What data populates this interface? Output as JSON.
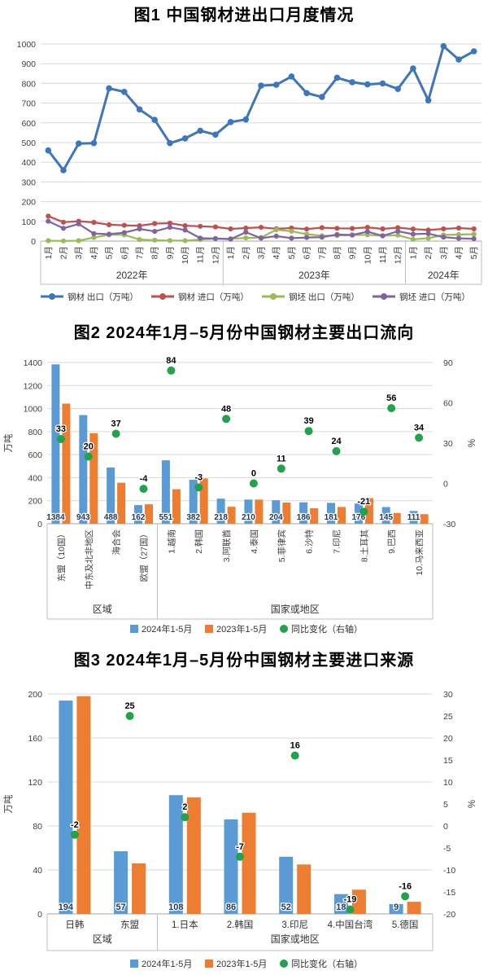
{
  "colors": {
    "bar_2024": "#5B9BD5",
    "bar_2023": "#ED7D31",
    "yoy_dot": "#21A24B",
    "grid": "#D9D9D9",
    "axis_line": "#A6A6A6",
    "separator": "#BFBFBF",
    "tick_text": "#404040",
    "bar_value_label": "#1F3864",
    "yoy_value_label": "#000000"
  },
  "chart_data": [
    {
      "id": "fig1",
      "type": "line",
      "title": "图1 中国钢材进出口月度情况",
      "categories": [
        "1月",
        "2月",
        "3月",
        "4月",
        "5月",
        "6月",
        "7月",
        "8月",
        "9月",
        "10月",
        "11月",
        "12月",
        "1月",
        "2月",
        "3月",
        "4月",
        "5月",
        "6月",
        "7月",
        "8月",
        "9月",
        "10月",
        "11月",
        "12月",
        "1月",
        "2月",
        "3月",
        "4月",
        "5月"
      ],
      "category_groups": [
        {
          "label": "2022年",
          "count": 12
        },
        {
          "label": "2023年",
          "count": 12
        },
        {
          "label": "2024年",
          "count": 5
        }
      ],
      "ylim": [
        0,
        1000
      ],
      "yticks": [
        0,
        100,
        200,
        300,
        400,
        500,
        600,
        700,
        800,
        900,
        1000
      ],
      "grid": true,
      "legend_position": "bottom",
      "series": [
        {
          "name": "钢材 出口（万吨）",
          "color": "#3D76BA",
          "values": [
            460,
            360,
            495,
            497,
            775,
            757,
            668,
            615,
            497,
            521,
            560,
            540,
            604,
            617,
            789,
            793,
            835,
            751,
            731,
            829,
            806,
            795,
            800,
            772,
            876,
            714,
            989,
            921,
            963
          ]
        },
        {
          "name": "钢材 进口（万吨）",
          "color": "#C0504D",
          "values": [
            127,
            96,
            101,
            95,
            83,
            80,
            78,
            89,
            91,
            78,
            75,
            72,
            62,
            66,
            70,
            63,
            66,
            61,
            68,
            65,
            64,
            70,
            62,
            68,
            61,
            56,
            62,
            66,
            62
          ]
        },
        {
          "name": "钢坯 出口（万吨）",
          "color": "#9BBB59",
          "values": [
            2,
            1,
            2,
            18,
            32,
            32,
            8,
            5,
            3,
            2,
            8,
            13,
            12,
            16,
            18,
            58,
            50,
            35,
            27,
            28,
            30,
            32,
            27,
            30,
            9,
            15,
            31,
            33,
            35
          ]
        },
        {
          "name": "钢坯 进口（万吨）",
          "color": "#8064A2",
          "values": [
            101,
            65,
            87,
            38,
            35,
            43,
            62,
            49,
            70,
            56,
            15,
            13,
            10,
            45,
            15,
            25,
            15,
            18,
            20,
            33,
            31,
            48,
            27,
            50,
            35,
            38,
            20,
            14,
            12
          ]
        }
      ]
    },
    {
      "id": "fig2",
      "type": "bar-scatter",
      "title": "图2 2024年1月–5月份中国钢材主要出口流向",
      "ylabel_left": "万吨",
      "ylabel_right": "%",
      "categories": [
        "东盟（10国）",
        "中东及北非地区",
        "海合会",
        "欧盟（27国）",
        "1.越南",
        "2.韩国",
        "3.阿联酋",
        "4.泰国",
        "5.菲律宾",
        "6.沙特",
        "7.印尼",
        "8.土耳其",
        "9.巴西",
        "10.马来西亚"
      ],
      "category_groups": [
        {
          "label": "区域",
          "count": 4
        },
        {
          "label": "国家或地区",
          "count": 10
        }
      ],
      "rotated_category_labels": true,
      "left_axis": {
        "lim": [
          0,
          1400
        ],
        "ticks": [
          0,
          200,
          400,
          600,
          800,
          1000,
          1200,
          1400
        ]
      },
      "right_axis": {
        "lim": [
          -30,
          90
        ],
        "ticks": [
          -30,
          0,
          30,
          60,
          90
        ]
      },
      "legend_position": "bottom",
      "series": [
        {
          "name": "2024年1-5月",
          "type": "bar",
          "color": "#5B9BD5",
          "show_labels": true,
          "values": [
            1384,
            943,
            488,
            162,
            551,
            382,
            218,
            210,
            204,
            186,
            181,
            176,
            145,
            111
          ]
        },
        {
          "name": "2023年1-5月",
          "type": "bar",
          "color": "#ED7D31",
          "values": [
            1043,
            786,
            356,
            169,
            300,
            394,
            147,
            210,
            184,
            134,
            146,
            223,
            93,
            83
          ]
        },
        {
          "name": "同比变化（右轴）",
          "type": "scatter",
          "axis": "right",
          "color": "#21A24B",
          "show_labels": true,
          "values": [
            33,
            20,
            37,
            -4,
            84,
            -3,
            48,
            0,
            11,
            39,
            24,
            -21,
            56,
            34
          ]
        }
      ]
    },
    {
      "id": "fig3",
      "type": "bar-scatter",
      "title": "图3 2024年1月–5月份中国钢材主要进口来源",
      "ylabel_left": "万吨",
      "ylabel_right": "%",
      "categories": [
        "日韩",
        "东盟",
        "1.日本",
        "2.韩国",
        "3.印尼",
        "4.中国台湾",
        "5.德国"
      ],
      "category_groups": [
        {
          "label": "区域",
          "count": 2
        },
        {
          "label": "国家或地区",
          "count": 5
        }
      ],
      "rotated_category_labels": false,
      "left_axis": {
        "lim": [
          0,
          200
        ],
        "ticks": [
          0,
          40,
          80,
          120,
          160,
          200
        ]
      },
      "right_axis": {
        "lim": [
          -20,
          30
        ],
        "ticks": [
          -20,
          -15,
          -10,
          -5,
          0,
          5,
          10,
          15,
          20,
          25,
          30
        ]
      },
      "legend_position": "bottom",
      "series": [
        {
          "name": "2024年1-5月",
          "type": "bar",
          "color": "#5B9BD5",
          "show_labels": true,
          "values": [
            194,
            57,
            108,
            86,
            52,
            18,
            9
          ]
        },
        {
          "name": "2023年1-5月",
          "type": "bar",
          "color": "#ED7D31",
          "values": [
            198,
            46,
            106,
            92,
            45,
            22,
            11
          ]
        },
        {
          "name": "同比变化（右轴）",
          "type": "scatter",
          "axis": "right",
          "color": "#21A24B",
          "show_labels": true,
          "values": [
            -2,
            25,
            2,
            -7,
            16,
            -19,
            -16
          ]
        }
      ]
    }
  ]
}
